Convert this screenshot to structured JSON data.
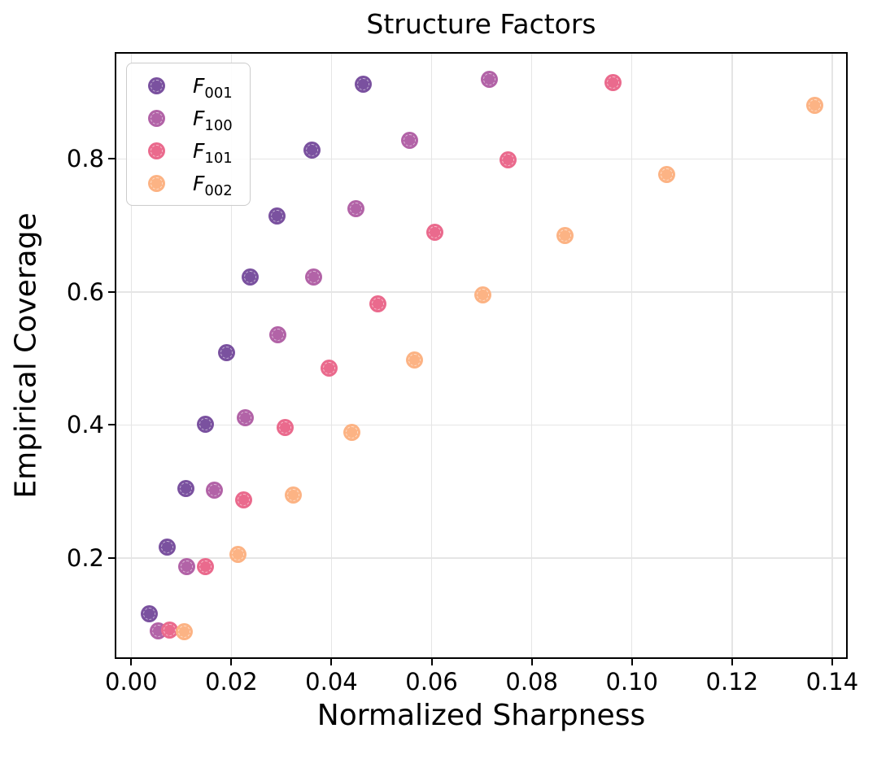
{
  "chart_data": {
    "type": "scatter",
    "title": "Structure Factors",
    "xlabel": "Normalized Sharpness",
    "ylabel": "Empirical Coverage",
    "xlim": [
      -0.0033,
      0.1431
    ],
    "ylim": [
      0.0485,
      0.9605
    ],
    "grid": true,
    "legend_position": "upper-left",
    "x_tick_values": [
      0.0,
      0.02,
      0.04,
      0.06,
      0.08,
      0.1,
      0.12,
      0.14
    ],
    "x_tick_labels": [
      "0.00",
      "0.02",
      "0.04",
      "0.06",
      "0.08",
      "0.10",
      "0.12",
      "0.14"
    ],
    "y_tick_values": [
      0.2,
      0.4,
      0.6,
      0.8
    ],
    "y_tick_labels": [
      "0.2",
      "0.4",
      "0.6",
      "0.8"
    ],
    "series": [
      {
        "name": "F_001",
        "label_base": "F",
        "label_sub": "001",
        "color": "#7a519f",
        "points": [
          [
            0.0036,
            0.116
          ],
          [
            0.0071,
            0.216
          ],
          [
            0.0109,
            0.305
          ],
          [
            0.0148,
            0.401
          ],
          [
            0.019,
            0.509
          ],
          [
            0.0237,
            0.622
          ],
          [
            0.0291,
            0.714
          ],
          [
            0.0361,
            0.813
          ],
          [
            0.0463,
            0.912
          ]
        ]
      },
      {
        "name": "F_100",
        "label_base": "F",
        "label_sub": "100",
        "color": "#b263a7",
        "points": [
          [
            0.0054,
            0.091
          ],
          [
            0.011,
            0.187
          ],
          [
            0.0166,
            0.302
          ],
          [
            0.0227,
            0.411
          ],
          [
            0.0292,
            0.536
          ],
          [
            0.0364,
            0.622
          ],
          [
            0.0448,
            0.725
          ],
          [
            0.0556,
            0.828
          ],
          [
            0.0715,
            0.919
          ]
        ]
      },
      {
        "name": "F_101",
        "label_base": "F",
        "label_sub": "101",
        "color": "#ea6a8d",
        "points": [
          [
            0.0076,
            0.092
          ],
          [
            0.0148,
            0.187
          ],
          [
            0.0224,
            0.287
          ],
          [
            0.0307,
            0.396
          ],
          [
            0.0395,
            0.486
          ],
          [
            0.0492,
            0.582
          ],
          [
            0.0607,
            0.69
          ],
          [
            0.0752,
            0.799
          ],
          [
            0.0963,
            0.915
          ]
        ]
      },
      {
        "name": "F_002",
        "label_base": "F",
        "label_sub": "002",
        "color": "#fcb384",
        "points": [
          [
            0.0106,
            0.09
          ],
          [
            0.0213,
            0.206
          ],
          [
            0.0323,
            0.295
          ],
          [
            0.044,
            0.389
          ],
          [
            0.0565,
            0.498
          ],
          [
            0.0703,
            0.596
          ],
          [
            0.0866,
            0.685
          ],
          [
            0.1069,
            0.776
          ],
          [
            0.1366,
            0.88
          ]
        ]
      }
    ]
  },
  "colors": {
    "grid": "#e5e5e5",
    "spine": "#000000",
    "legend_border": "#cccccc",
    "background": "#ffffff"
  }
}
